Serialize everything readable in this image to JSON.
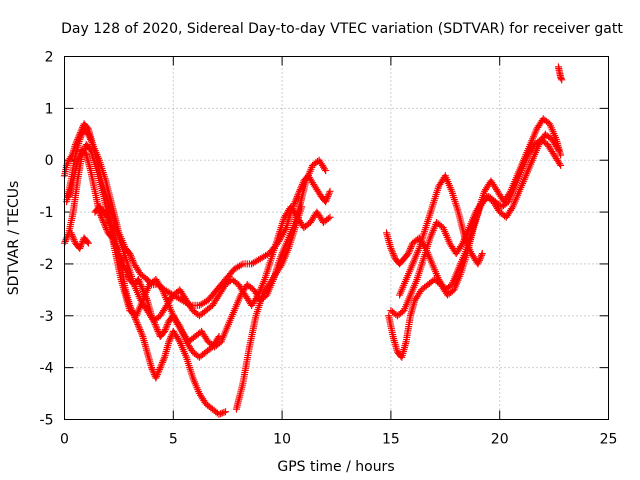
{
  "chart_data": {
    "type": "scatter",
    "title": "Day 128 of 2020, Sidereal Day-to-day VTEC variation (SDTVAR) for receiver gatt",
    "xlabel": "GPS time / hours",
    "ylabel": "SDTVAR / TECUs",
    "xlim": [
      0,
      25
    ],
    "ylim": [
      -5,
      2
    ],
    "x_ticks": [
      "0",
      "5",
      "10",
      "15",
      "20",
      "25"
    ],
    "y_ticks": [
      "-5",
      "-4",
      "-3",
      "-2",
      "-1",
      "0",
      "1",
      "2"
    ],
    "grid": true,
    "marker": "plus",
    "color": "#ff0000",
    "series": [
      {
        "x": [
          0.0,
          0.1,
          0.2,
          0.35,
          0.5,
          0.7,
          0.9,
          1.1,
          1.3,
          1.6,
          1.9,
          2.2,
          2.5,
          2.8,
          3.0,
          3.2,
          3.5,
          3.8,
          4.0,
          4.3,
          4.6,
          5.0,
          5.4,
          5.8,
          6.2,
          6.6,
          7.0,
          7.4,
          7.8,
          8.2,
          8.6,
          9.0,
          9.4,
          9.8,
          10.2,
          10.4,
          10.6,
          10.8,
          11.0,
          11.2,
          11.5,
          11.8,
          12.0,
          12.2
        ],
        "y": [
          -0.3,
          -0.1,
          0.0,
          0.1,
          0.3,
          0.5,
          0.7,
          0.6,
          0.3,
          0.0,
          -0.4,
          -0.9,
          -1.4,
          -1.7,
          -1.8,
          -2.0,
          -2.2,
          -2.3,
          -2.4,
          -2.4,
          -2.5,
          -2.6,
          -2.7,
          -2.8,
          -2.8,
          -2.7,
          -2.5,
          -2.3,
          -2.1,
          -2.0,
          -2.0,
          -1.9,
          -1.8,
          -1.6,
          -1.3,
          -1.0,
          -0.8,
          -0.6,
          -0.4,
          -0.3,
          -0.5,
          -0.7,
          -0.8,
          -0.6
        ]
      },
      {
        "x": [
          0.1,
          0.3,
          0.5,
          0.7,
          0.9,
          1.1,
          1.3,
          1.5,
          1.7,
          2.0,
          2.3,
          2.6,
          2.9,
          3.2,
          3.5,
          3.8,
          4.1,
          4.4,
          4.7,
          5.0,
          5.3,
          5.6,
          5.9,
          6.2,
          6.5,
          6.8,
          7.1,
          7.4,
          7.7,
          8.0,
          8.3,
          8.6,
          8.9,
          9.2,
          9.5,
          9.8,
          10.1,
          10.4,
          10.7,
          11.0,
          11.3,
          11.6,
          11.9,
          12.2
        ],
        "y": [
          -0.8,
          -0.4,
          0.1,
          0.4,
          0.6,
          0.5,
          0.3,
          0.0,
          -0.4,
          -0.8,
          -1.2,
          -1.6,
          -2.0,
          -2.4,
          -2.7,
          -2.9,
          -3.1,
          -3.0,
          -2.8,
          -2.6,
          -2.5,
          -2.7,
          -2.9,
          -3.0,
          -2.9,
          -2.8,
          -2.6,
          -2.4,
          -2.3,
          -2.4,
          -2.6,
          -2.8,
          -2.6,
          -2.3,
          -1.9,
          -1.5,
          -1.1,
          -0.9,
          -1.1,
          -1.3,
          -1.2,
          -1.0,
          -1.2,
          -1.1
        ]
      },
      {
        "x": [
          0.0,
          0.2,
          0.4,
          0.6,
          0.8,
          1.0,
          1.2,
          1.5,
          1.8,
          2.0,
          2.2,
          2.4,
          2.6,
          2.8,
          3.0,
          3.3,
          3.6,
          3.9,
          4.2,
          4.5,
          4.8,
          5.1,
          5.4,
          5.7,
          6.0,
          6.3,
          6.6,
          6.9,
          7.2,
          7.5,
          7.8,
          8.1,
          8.4,
          8.7,
          9.0,
          9.3,
          9.6,
          9.9,
          10.2,
          10.5,
          10.8,
          11.1,
          11.4,
          11.7,
          12.0
        ],
        "y": [
          -1.6,
          -1.4,
          -1.0,
          -0.4,
          0.1,
          0.3,
          0.2,
          -0.2,
          -0.7,
          -1.1,
          -1.5,
          -1.9,
          -2.3,
          -2.6,
          -2.9,
          -3.0,
          -2.7,
          -2.4,
          -2.3,
          -2.5,
          -2.8,
          -3.1,
          -3.3,
          -3.5,
          -3.4,
          -3.3,
          -3.5,
          -3.6,
          -3.5,
          -3.2,
          -2.9,
          -2.6,
          -2.4,
          -2.5,
          -2.7,
          -2.6,
          -2.3,
          -1.9,
          -1.6,
          -1.3,
          -0.9,
          -0.4,
          -0.1,
          0.0,
          -0.2
        ]
      },
      {
        "x": [
          0.2,
          0.4,
          0.6,
          0.8,
          1.0,
          1.2,
          1.4,
          1.6,
          1.8,
          2.0,
          2.2,
          2.4,
          2.6,
          2.8,
          3.0,
          3.2,
          3.4,
          3.6,
          3.8,
          4.0,
          4.2,
          4.4,
          4.6,
          4.8,
          5.0,
          5.3,
          5.6,
          5.9,
          6.2,
          6.5,
          6.8,
          7.1
        ],
        "y": [
          -0.7,
          -0.4,
          0.0,
          0.2,
          0.1,
          -0.2,
          -0.6,
          -1.0,
          -1.2,
          -1.4,
          -1.5,
          -1.7,
          -1.9,
          -2.1,
          -2.3,
          -2.4,
          -2.3,
          -2.5,
          -2.7,
          -3.0,
          -3.2,
          -3.4,
          -3.3,
          -3.1,
          -3.0,
          -3.2,
          -3.5,
          -3.7,
          -3.8,
          -3.7,
          -3.6,
          -3.4
        ]
      },
      {
        "x": [
          1.4,
          1.6,
          1.8,
          2.0,
          2.2,
          2.4,
          2.6,
          2.8,
          3.0,
          3.2,
          3.4,
          3.6,
          3.8,
          4.0,
          4.2,
          4.4,
          4.6,
          4.8,
          5.0,
          5.3,
          5.6,
          5.9,
          6.2,
          6.5,
          6.8,
          7.1,
          7.4
        ],
        "y": [
          -1.0,
          -0.9,
          -1.0,
          -1.1,
          -1.3,
          -1.6,
          -2.0,
          -2.5,
          -2.8,
          -3.0,
          -3.2,
          -3.4,
          -3.7,
          -4.0,
          -4.2,
          -4.0,
          -3.8,
          -3.5,
          -3.3,
          -3.5,
          -3.8,
          -4.2,
          -4.5,
          -4.7,
          -4.8,
          -4.9,
          -4.85
        ]
      },
      {
        "x": [
          0.3,
          0.5,
          0.7,
          0.9,
          1.1
        ],
        "y": [
          -1.4,
          -1.6,
          -1.7,
          -1.5,
          -1.6
        ]
      },
      {
        "x": [
          7.9,
          8.2,
          8.5,
          8.8,
          9.1,
          9.4,
          9.7,
          10.0,
          10.3,
          10.6,
          10.9
        ],
        "y": [
          -4.8,
          -4.3,
          -3.6,
          -3.0,
          -2.6,
          -2.4,
          -2.2,
          -2.0,
          -1.7,
          -1.3,
          -0.9
        ]
      },
      {
        "x": [
          14.8,
          15.0,
          15.2,
          15.4,
          15.6,
          15.8,
          16.0,
          16.3,
          16.6,
          16.9,
          17.2,
          17.5,
          17.8,
          18.1,
          18.4,
          18.7,
          19.0,
          19.3,
          19.6,
          19.9,
          20.2,
          20.5,
          20.8,
          21.1,
          21.4,
          21.7,
          22.0,
          22.3,
          22.6,
          22.8
        ],
        "y": [
          -1.4,
          -1.7,
          -1.9,
          -2.0,
          -1.9,
          -1.8,
          -1.6,
          -1.5,
          -1.7,
          -2.0,
          -2.3,
          -2.5,
          -2.4,
          -2.1,
          -1.8,
          -1.4,
          -1.0,
          -0.6,
          -0.4,
          -0.6,
          -0.8,
          -0.6,
          -0.3,
          0.0,
          0.3,
          0.6,
          0.8,
          0.7,
          0.4,
          0.1
        ]
      },
      {
        "x": [
          14.9,
          15.1,
          15.3,
          15.5,
          15.7,
          15.9,
          16.1,
          16.4,
          16.7,
          17.0,
          17.3,
          17.6,
          17.9,
          18.2,
          18.5,
          18.8,
          19.1,
          19.4,
          19.7,
          20.0,
          20.3,
          20.6,
          20.9,
          21.2,
          21.5,
          21.8,
          22.1,
          22.4,
          22.7
        ],
        "y": [
          -3.0,
          -3.4,
          -3.7,
          -3.8,
          -3.5,
          -3.0,
          -2.7,
          -2.5,
          -2.4,
          -2.3,
          -2.4,
          -2.6,
          -2.5,
          -2.2,
          -1.8,
          -1.3,
          -0.9,
          -0.7,
          -0.8,
          -1.0,
          -1.1,
          -0.9,
          -0.6,
          -0.3,
          0.0,
          0.3,
          0.5,
          0.4,
          0.2
        ]
      },
      {
        "x": [
          15.0,
          15.3,
          15.6,
          15.9,
          16.2,
          16.5,
          16.8,
          17.1,
          17.4,
          17.7,
          18.0,
          18.3,
          18.6,
          18.9,
          19.2,
          19.5,
          19.8,
          20.1,
          20.4,
          20.7,
          21.0,
          21.3,
          21.6,
          21.9,
          22.2,
          22.5,
          22.8
        ],
        "y": [
          -2.9,
          -3.0,
          -2.9,
          -2.6,
          -2.3,
          -1.9,
          -1.5,
          -1.2,
          -1.3,
          -1.6,
          -1.8,
          -1.6,
          -1.3,
          -1.0,
          -0.8,
          -0.7,
          -0.8,
          -0.9,
          -0.8,
          -0.5,
          -0.2,
          0.1,
          0.3,
          0.4,
          0.3,
          0.1,
          -0.1
        ]
      },
      {
        "x": [
          15.4,
          15.7,
          16.0,
          16.3,
          16.6,
          16.9,
          17.2,
          17.5,
          17.8,
          18.1,
          18.4,
          18.7,
          19.0,
          19.2
        ],
        "y": [
          -2.6,
          -2.3,
          -2.0,
          -1.7,
          -1.3,
          -0.9,
          -0.5,
          -0.3,
          -0.6,
          -1.0,
          -1.5,
          -1.8,
          -2.0,
          -1.8
        ]
      },
      {
        "x": [
          22.7,
          22.75,
          22.8,
          22.85
        ],
        "y": [
          1.8,
          1.7,
          1.6,
          1.55
        ]
      }
    ]
  }
}
